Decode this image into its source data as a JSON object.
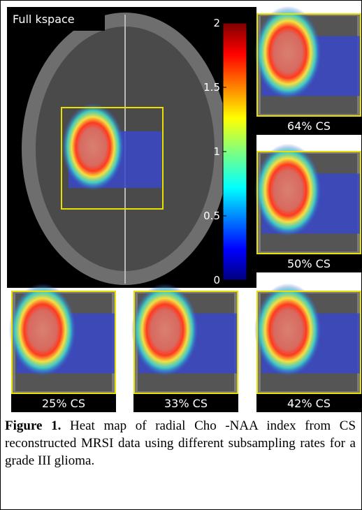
{
  "figure": {
    "main_label": "Full kspace",
    "colorbar": {
      "lim": [
        0,
        2
      ],
      "ticks": [
        0,
        0.5,
        1,
        1.5,
        2
      ]
    },
    "panels": [
      "64% CS",
      "50% CS",
      "25% CS",
      "33% CS",
      "42% CS"
    ]
  },
  "caption": {
    "label": "Figure 1.",
    "text": "Heat map of radial Cho -NAA index from CS reconstructed MRSI data using different subsampling rates for a grade III glioma."
  }
}
